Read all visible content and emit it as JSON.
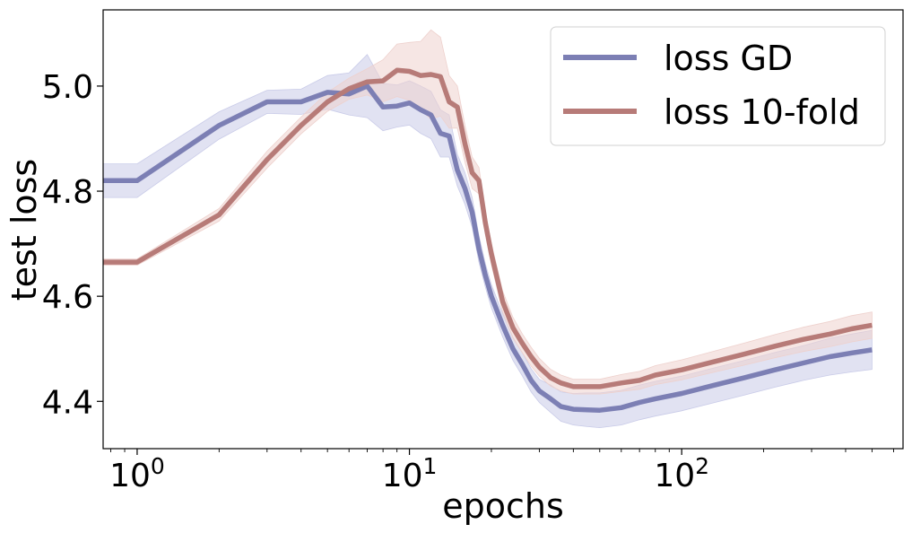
{
  "chart_data": {
    "type": "line",
    "xscale": "log",
    "xlabel": "epochs",
    "ylabel": "test loss",
    "xlim": [
      0.75,
      650
    ],
    "ylim": [
      4.31,
      5.145
    ],
    "xticks": [
      {
        "value": 1,
        "base": "10",
        "exp": "0"
      },
      {
        "value": 10,
        "base": "10",
        "exp": "1"
      },
      {
        "value": 100,
        "base": "10",
        "exp": "2"
      }
    ],
    "yticks": [
      {
        "value": 4.4,
        "label": "4.4"
      },
      {
        "value": 4.6,
        "label": "4.6"
      },
      {
        "value": 4.8,
        "label": "4.8"
      },
      {
        "value": 5.0,
        "label": "5.0"
      }
    ],
    "legend": {
      "position": "top-right"
    },
    "series": [
      {
        "name": "loss GD",
        "color": "#7c7fb4",
        "band_color": "#c9cbe8",
        "x": [
          0.75,
          1,
          2,
          3,
          4,
          5,
          6,
          7,
          8,
          9,
          10,
          11,
          12,
          13,
          14,
          15,
          16,
          17,
          18,
          19,
          20,
          22,
          24,
          26,
          28,
          30,
          33,
          36,
          40,
          45,
          50,
          60,
          70,
          80,
          100,
          130,
          170,
          220,
          280,
          350,
          420,
          500
        ],
        "y": [
          4.82,
          4.82,
          4.925,
          4.97,
          4.97,
          4.988,
          4.985,
          5.0,
          4.96,
          4.962,
          4.968,
          4.955,
          4.945,
          4.91,
          4.905,
          4.84,
          4.805,
          4.76,
          4.69,
          4.64,
          4.6,
          4.545,
          4.5,
          4.47,
          4.44,
          4.42,
          4.405,
          4.39,
          4.385,
          4.384,
          4.383,
          4.388,
          4.398,
          4.405,
          4.415,
          4.43,
          4.445,
          4.46,
          4.473,
          4.485,
          4.492,
          4.498
        ],
        "band": [
          0.032,
          0.032,
          0.026,
          0.022,
          0.024,
          0.032,
          0.04,
          0.06,
          0.045,
          0.04,
          0.042,
          0.045,
          0.045,
          0.045,
          0.04,
          0.03,
          0.03,
          0.028,
          0.025,
          0.022,
          0.022,
          0.022,
          0.022,
          0.022,
          0.022,
          0.022,
          0.026,
          0.028,
          0.03,
          0.032,
          0.033,
          0.033,
          0.033,
          0.033,
          0.033,
          0.033,
          0.033,
          0.033,
          0.033,
          0.035,
          0.036,
          0.037
        ]
      },
      {
        "name": "loss 10-fold",
        "color": "#b77b78",
        "band_color": "#eed1cd",
        "x": [
          0.75,
          1,
          2,
          3,
          4,
          5,
          6,
          7,
          8,
          9,
          10,
          11,
          12,
          13,
          14,
          15,
          16,
          17,
          18,
          19,
          20,
          22,
          24,
          26,
          28,
          30,
          33,
          36,
          40,
          45,
          50,
          60,
          70,
          80,
          100,
          130,
          170,
          220,
          280,
          350,
          420,
          500
        ],
        "y": [
          4.665,
          4.665,
          4.755,
          4.86,
          4.925,
          4.97,
          4.995,
          5.008,
          5.01,
          5.03,
          5.028,
          5.02,
          5.022,
          5.018,
          4.97,
          4.96,
          4.89,
          4.835,
          4.82,
          4.74,
          4.68,
          4.59,
          4.54,
          4.51,
          4.485,
          4.465,
          4.445,
          4.435,
          4.428,
          4.428,
          4.428,
          4.435,
          4.44,
          4.45,
          4.46,
          4.475,
          4.49,
          4.505,
          4.518,
          4.528,
          4.538,
          4.545
        ],
        "band": [
          0.006,
          0.006,
          0.012,
          0.016,
          0.016,
          0.018,
          0.02,
          0.025,
          0.04,
          0.05,
          0.055,
          0.065,
          0.085,
          0.075,
          0.05,
          0.04,
          0.035,
          0.03,
          0.025,
          0.022,
          0.02,
          0.02,
          0.02,
          0.018,
          0.018,
          0.017,
          0.016,
          0.015,
          0.014,
          0.014,
          0.014,
          0.016,
          0.017,
          0.018,
          0.019,
          0.02,
          0.021,
          0.022,
          0.023,
          0.024,
          0.025,
          0.025
        ]
      }
    ]
  }
}
